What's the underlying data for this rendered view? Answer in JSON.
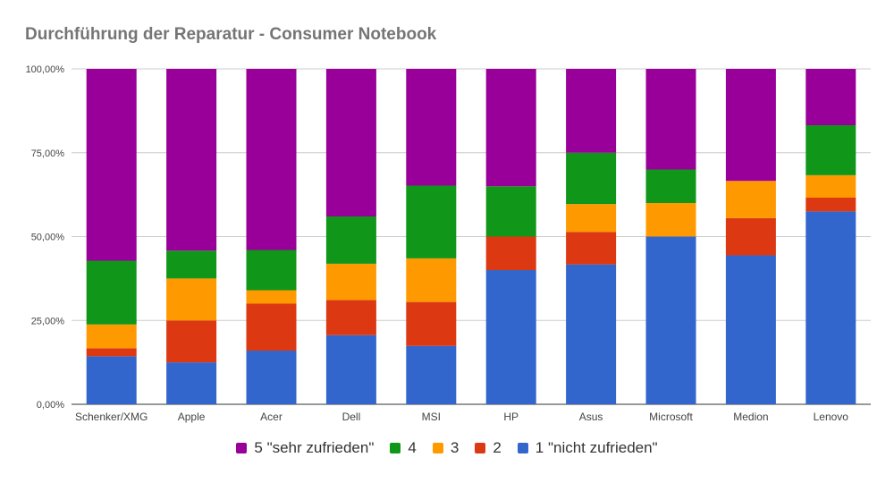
{
  "chart_title": "Durchführung der Reparatur - Consumer Notebook",
  "chart_data": {
    "type": "bar",
    "stacked": true,
    "percent": true,
    "title": "Durchführung der Reparatur - Consumer Notebook",
    "categories": [
      "Schenker/XMG",
      "Apple",
      "Acer",
      "Dell",
      "MSI",
      "HP",
      "Asus",
      "Microsoft",
      "Medion",
      "Lenovo"
    ],
    "y_ticks": [
      "0,00%",
      "25,00%",
      "50,00%",
      "75,00%",
      "100,00%"
    ],
    "ylim": [
      0,
      100
    ],
    "grid": true,
    "legend_position": "bottom",
    "series": [
      {
        "name": "1 \"nicht zufrieden\"",
        "color": "#3366cc",
        "values": [
          14.3,
          12.5,
          16.0,
          20.6,
          17.4,
          40.0,
          41.7,
          50.0,
          44.4,
          57.5
        ]
      },
      {
        "name": "2",
        "color": "#dc3912",
        "values": [
          2.4,
          12.5,
          14.0,
          10.5,
          13.1,
          10.0,
          9.7,
          0.0,
          11.1,
          4.1
        ]
      },
      {
        "name": "3",
        "color": "#ff9900",
        "values": [
          7.1,
          12.5,
          4.0,
          10.8,
          13.0,
          0.0,
          8.3,
          10.0,
          11.1,
          6.7
        ]
      },
      {
        "name": "4",
        "color": "#109618",
        "values": [
          19.0,
          8.3,
          12.0,
          14.1,
          21.7,
          15.0,
          15.3,
          10.0,
          0.0,
          14.9
        ]
      },
      {
        "name": "5 \"sehr zufrieden\"",
        "color": "#990099",
        "values": [
          57.2,
          54.2,
          54.0,
          44.0,
          34.8,
          35.0,
          25.0,
          30.0,
          33.4,
          16.8
        ]
      }
    ]
  },
  "legend": [
    {
      "label": "5 \"sehr zufrieden\"",
      "color": "#990099"
    },
    {
      "label": "4",
      "color": "#109618"
    },
    {
      "label": "3",
      "color": "#ff9900"
    },
    {
      "label": "2",
      "color": "#dc3912"
    },
    {
      "label": "1 \"nicht zufrieden\"",
      "color": "#3366cc"
    }
  ]
}
